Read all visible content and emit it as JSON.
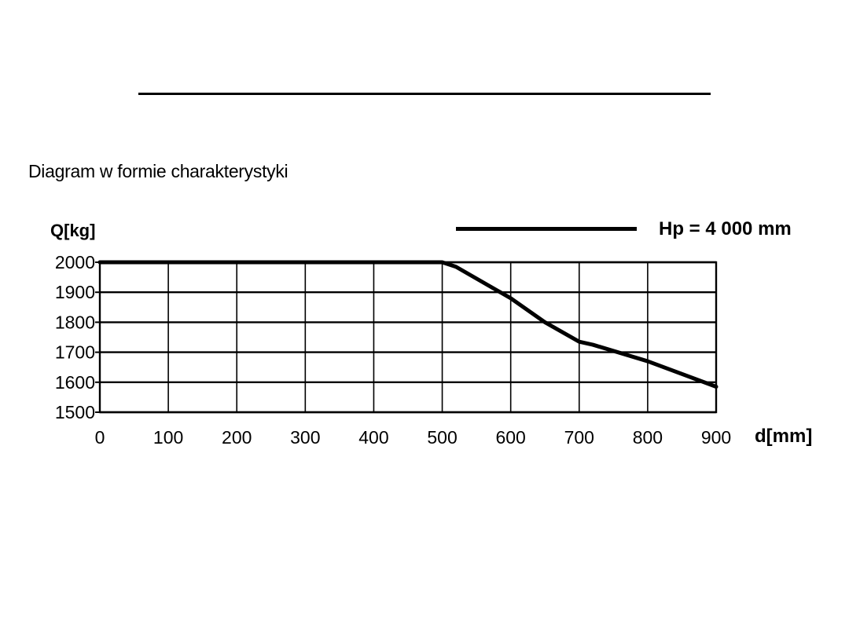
{
  "page": {
    "subtitle": "Diagram w formie charakterystyki"
  },
  "chart_data": {
    "type": "line",
    "title": "",
    "xlabel": "d[mm]",
    "ylabel": "Q[kg]",
    "xlim": [
      0,
      900
    ],
    "ylim": [
      1500,
      2000
    ],
    "x_ticks": [
      "0",
      "100",
      "200",
      "300",
      "400",
      "500",
      "600",
      "700",
      "800",
      "900"
    ],
    "y_ticks": [
      "1500",
      "1600",
      "1700",
      "1800",
      "1900",
      "2000"
    ],
    "grid": true,
    "legend_position": "top-right",
    "series": [
      {
        "name": "Hp = 4 000 mm",
        "color": "#000000",
        "x": [
          0,
          500,
          520,
          600,
          650,
          700,
          720,
          800,
          900
        ],
        "y": [
          2000,
          2000,
          1985,
          1880,
          1800,
          1735,
          1725,
          1670,
          1585
        ]
      }
    ]
  }
}
